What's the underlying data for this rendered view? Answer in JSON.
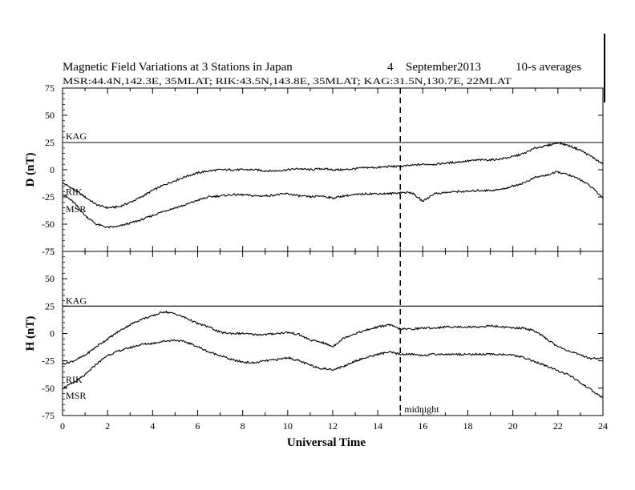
{
  "title": {
    "main": "Magnetic Field Variations at 3 Stations in Japan",
    "day": "4",
    "month": "September",
    "year": "2013",
    "averaging": "10-s averages"
  },
  "subtitle": "MSR:44.4N,142.3E, 35MLAT;  RIK:43.5N,143.8E, 35MLAT;  KAG:31.5N,130.7E, 22MLAT",
  "chart_data": [
    {
      "type": "line",
      "panel": "D",
      "ylabel": "D (nT)",
      "xlabel": "",
      "xlim": [
        0,
        24
      ],
      "ylim": [
        -75,
        75
      ],
      "yticks": [
        "75",
        "50",
        "25",
        "0",
        "-25",
        "-50",
        "-75"
      ],
      "series": [
        {
          "name": "KAG",
          "x": [
            0,
            24
          ],
          "values": [
            25,
            25
          ]
        },
        {
          "name": "RIK",
          "x": [
            0,
            0.5,
            1,
            1.5,
            2,
            2.5,
            3,
            3.5,
            4,
            4.5,
            5,
            5.5,
            6,
            6.5,
            7,
            7.5,
            8,
            8.5,
            9,
            9.5,
            10,
            10.5,
            11,
            11.5,
            12,
            12.5,
            13,
            13.5,
            14,
            14.5,
            15,
            15.5,
            16,
            16.5,
            17,
            17.5,
            18,
            18.5,
            19,
            19.5,
            20,
            20.5,
            21,
            21.5,
            22,
            22.5,
            23,
            23.5,
            24
          ],
          "values": [
            -12,
            -18,
            -25,
            -32,
            -35,
            -34,
            -30,
            -25,
            -19,
            -14,
            -10,
            -6,
            -3,
            -1,
            0,
            0,
            0,
            0,
            -1,
            -1,
            0,
            1,
            0,
            1,
            0,
            0,
            1,
            2,
            2,
            3,
            3,
            4,
            5,
            5,
            6,
            7,
            8,
            9,
            9,
            10,
            12,
            15,
            20,
            22,
            25,
            22,
            18,
            12,
            5
          ]
        },
        {
          "name": "MSR",
          "x": [
            0,
            0.5,
            1,
            1.5,
            2,
            2.5,
            3,
            3.5,
            4,
            4.5,
            5,
            5.5,
            6,
            6.5,
            7,
            7.5,
            8,
            8.5,
            9,
            9.5,
            10,
            10.5,
            11,
            11.5,
            12,
            12.5,
            13,
            13.5,
            14,
            14.5,
            15,
            15.5,
            16,
            16.5,
            17,
            17.5,
            18,
            18.5,
            19,
            19.5,
            20,
            20.5,
            21,
            21.5,
            22,
            22.5,
            23,
            23.5,
            24
          ],
          "values": [
            -22,
            -30,
            -42,
            -50,
            -53,
            -52,
            -49,
            -46,
            -42,
            -38,
            -35,
            -32,
            -28,
            -25,
            -24,
            -23,
            -23,
            -24,
            -24,
            -23,
            -22,
            -24,
            -25,
            -24,
            -26,
            -24,
            -23,
            -22,
            -22,
            -22,
            -21,
            -21,
            -29,
            -22,
            -21,
            -20,
            -20,
            -19,
            -19,
            -18,
            -15,
            -12,
            -7,
            -5,
            -2,
            -5,
            -9,
            -16,
            -26
          ]
        }
      ]
    },
    {
      "type": "line",
      "panel": "H",
      "ylabel": "H (nT)",
      "xlabel": "Universal Time",
      "xlim": [
        0,
        24
      ],
      "ylim": [
        -75,
        75
      ],
      "xticks": [
        "0",
        "2",
        "4",
        "6",
        "8",
        "10",
        "12",
        "14",
        "16",
        "18",
        "20",
        "22",
        "24"
      ],
      "yticks": [
        "75",
        "50",
        "25",
        "0",
        "-25",
        "-50",
        "-75"
      ],
      "series": [
        {
          "name": "KAG",
          "x": [
            0,
            24
          ],
          "values": [
            25,
            25
          ]
        },
        {
          "name": "RIK",
          "x": [
            0,
            0.5,
            1,
            1.5,
            2,
            2.5,
            3,
            3.5,
            4,
            4.5,
            5,
            5.5,
            6,
            6.5,
            7,
            7.5,
            8,
            8.5,
            9,
            9.5,
            10,
            10.5,
            11,
            11.5,
            12,
            12.5,
            13,
            13.5,
            14,
            14.5,
            15,
            15.5,
            16,
            16.5,
            17,
            17.5,
            18,
            18.5,
            19,
            19.5,
            20,
            20.5,
            21,
            21.5,
            22,
            22.5,
            23,
            23.5,
            24
          ],
          "values": [
            -28,
            -25,
            -20,
            -12,
            -5,
            2,
            8,
            13,
            16,
            20,
            18,
            14,
            9,
            6,
            1,
            0,
            0,
            -1,
            -1,
            0,
            1,
            -1,
            -6,
            -8,
            -12,
            -4,
            0,
            3,
            6,
            8,
            4,
            4,
            5,
            5,
            6,
            6,
            6,
            6,
            7,
            6,
            5,
            5,
            2,
            -5,
            -12,
            -16,
            -20,
            -23,
            -22
          ]
        },
        {
          "name": "MSR",
          "x": [
            0,
            0.5,
            1,
            1.5,
            2,
            2.5,
            3,
            3.5,
            4,
            4.5,
            5,
            5.5,
            6,
            6.5,
            7,
            7.5,
            8,
            8.5,
            9,
            9.5,
            10,
            10.5,
            11,
            11.5,
            12,
            12.5,
            13,
            13.5,
            14,
            14.5,
            15,
            15.5,
            16,
            16.5,
            17,
            17.5,
            18,
            18.5,
            19,
            19.5,
            20,
            20.5,
            21,
            21.5,
            22,
            22.5,
            23,
            23.5,
            24
          ],
          "values": [
            -50,
            -45,
            -38,
            -28,
            -20,
            -16,
            -13,
            -10,
            -9,
            -7,
            -6,
            -8,
            -12,
            -17,
            -20,
            -24,
            -26,
            -27,
            -25,
            -24,
            -22,
            -25,
            -29,
            -32,
            -33,
            -30,
            -25,
            -22,
            -19,
            -17,
            -19,
            -19,
            -20,
            -19,
            -19,
            -19,
            -19,
            -19,
            -19,
            -19,
            -20,
            -22,
            -26,
            -30,
            -34,
            -38,
            -45,
            -52,
            -59
          ]
        }
      ]
    }
  ],
  "annotations": {
    "midnight_label": "midnight",
    "midnight_ut": 15
  }
}
